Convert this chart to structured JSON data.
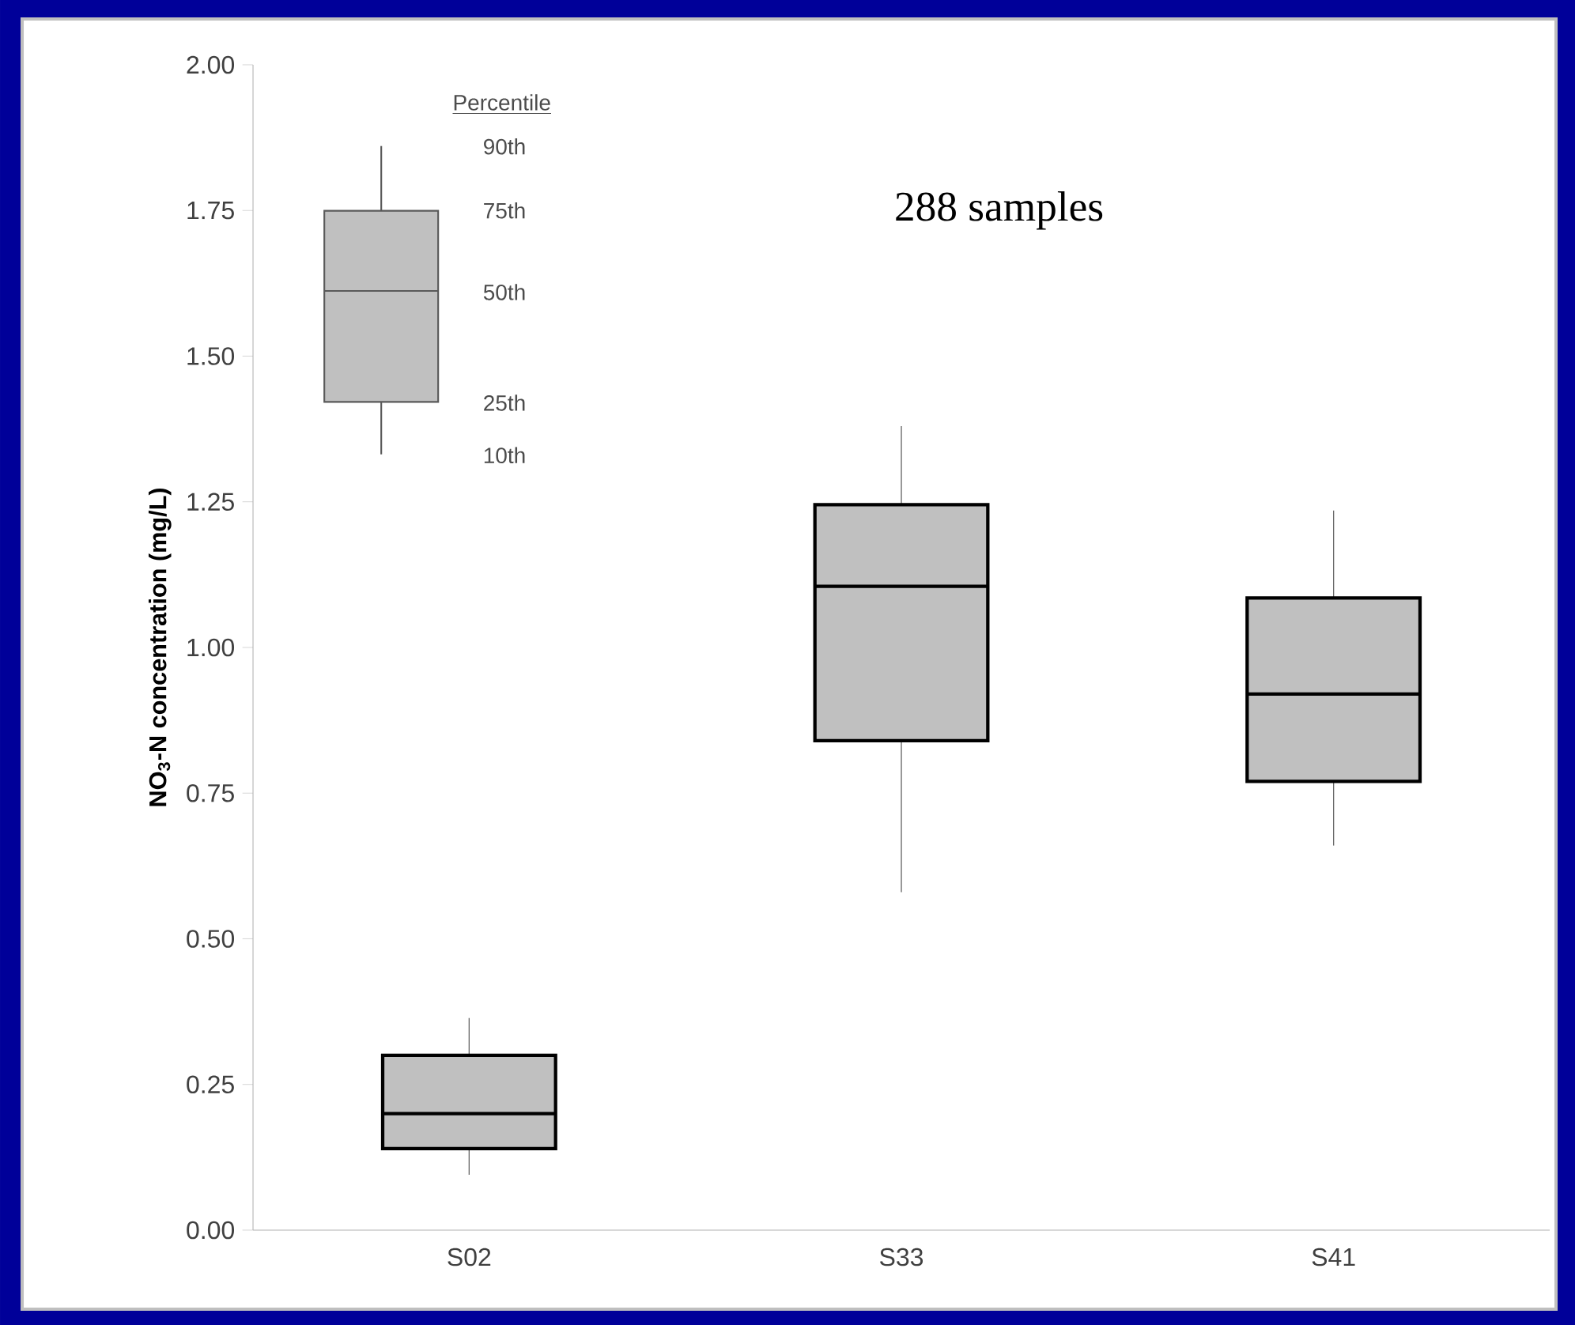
{
  "chart_data": {
    "type": "box",
    "ylabel": "NO$_{3}$-N concentration (mg/L)",
    "categories": [
      "S02",
      "S33",
      "S41"
    ],
    "color": "#c0c0c0",
    "boxes": [
      {
        "low": 0.095,
        "q1": 0.14,
        "median": 0.2,
        "q3": 0.3,
        "high": 0.364
      },
      {
        "low": 0.58,
        "q1": 0.84,
        "median": 1.105,
        "q3": 1.245,
        "high": 1.38
      },
      {
        "low": 0.66,
        "q1": 0.77,
        "median": 0.92,
        "q3": 1.085,
        "high": 1.235
      }
    ],
    "ylim": [
      0,
      2
    ],
    "yticks": [
      {
        "value": 0,
        "label": "0.00"
      },
      {
        "value": 0.25,
        "label": "0.25"
      },
      {
        "value": 0.5,
        "label": "0.50"
      },
      {
        "value": 0.75,
        "label": "0.75"
      },
      {
        "value": 1,
        "label": "1.00"
      },
      {
        "value": 1.25,
        "label": "1.25"
      },
      {
        "value": 1.5,
        "label": "1.50"
      },
      {
        "value": 1.75,
        "label": "1.75"
      },
      {
        "value": 2,
        "label": "2.00"
      }
    ],
    "annotations": [
      "Percentile",
      "90th",
      "75th",
      "50th",
      "25th",
      "10th",
      "288 samples"
    ]
  }
}
